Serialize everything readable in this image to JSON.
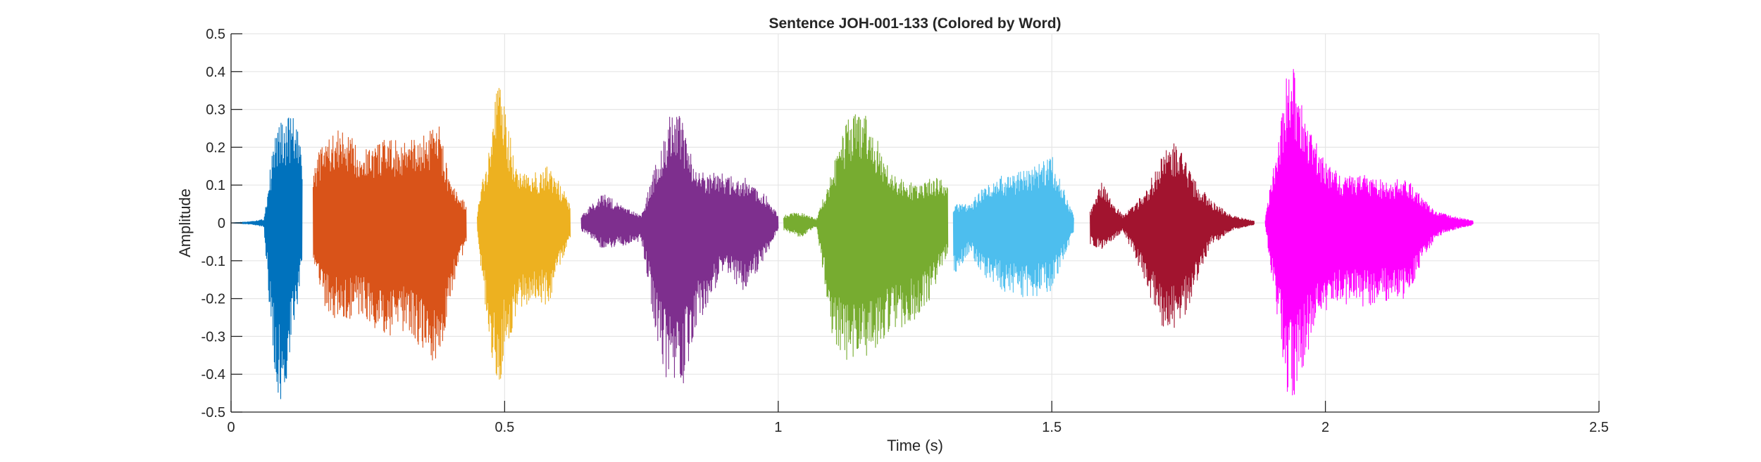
{
  "chart_data": {
    "type": "line",
    "title": "Sentence JOH-001-133 (Colored by Word)",
    "xlabel": "Time (s)",
    "ylabel": "Amplitude",
    "xlim": [
      0,
      2.5
    ],
    "ylim": [
      -0.5,
      0.5
    ],
    "xticks": [
      0,
      0.5,
      1,
      1.5,
      2,
      2.5
    ],
    "xtick_labels": [
      "0",
      "0.5",
      "1",
      "1.5",
      "2",
      "2.5"
    ],
    "yticks": [
      -0.5,
      -0.4,
      -0.3,
      -0.2,
      -0.1,
      0,
      0.1,
      0.2,
      0.3,
      0.4,
      0.5
    ],
    "ytick_labels": [
      "-0.5",
      "-0.4",
      "-0.3",
      "-0.2",
      "-0.1",
      "0",
      "0.1",
      "0.2",
      "0.3",
      "0.4",
      "0.5"
    ],
    "grid": true,
    "series": [
      {
        "color": "#0072BD",
        "x": [
          0.0,
          0.03,
          0.06,
          0.08,
          0.09,
          0.1,
          0.11,
          0.12,
          0.13
        ],
        "upper": [
          0.0,
          0.003,
          0.01,
          0.24,
          0.27,
          0.27,
          0.29,
          0.26,
          0.17
        ],
        "lower": [
          0.0,
          -0.003,
          -0.01,
          -0.42,
          -0.49,
          -0.47,
          -0.33,
          -0.24,
          -0.12
        ]
      },
      {
        "color": "#D95319",
        "x": [
          0.15,
          0.17,
          0.2,
          0.24,
          0.28,
          0.32,
          0.35,
          0.38,
          0.4,
          0.43
        ],
        "upper": [
          0.15,
          0.22,
          0.25,
          0.2,
          0.22,
          0.22,
          0.23,
          0.26,
          0.11,
          0.05
        ],
        "lower": [
          -0.1,
          -0.22,
          -0.27,
          -0.24,
          -0.32,
          -0.28,
          -0.34,
          -0.41,
          -0.2,
          -0.05
        ]
      },
      {
        "color": "#EDB120",
        "x": [
          0.45,
          0.47,
          0.49,
          0.5,
          0.52,
          0.55,
          0.58,
          0.6,
          0.62
        ],
        "upper": [
          0.03,
          0.2,
          0.41,
          0.3,
          0.16,
          0.13,
          0.15,
          0.11,
          0.05
        ],
        "lower": [
          -0.03,
          -0.3,
          -0.46,
          -0.34,
          -0.27,
          -0.2,
          -0.22,
          -0.12,
          -0.04
        ]
      },
      {
        "color": "#7E2F8E",
        "x": [
          0.64,
          0.68,
          0.72,
          0.75,
          0.78,
          0.8,
          0.82,
          0.85,
          0.9,
          0.94,
          0.98,
          1.0
        ],
        "upper": [
          0.02,
          0.08,
          0.04,
          0.02,
          0.18,
          0.28,
          0.29,
          0.14,
          0.13,
          0.12,
          0.07,
          0.02
        ],
        "lower": [
          -0.02,
          -0.07,
          -0.06,
          -0.05,
          -0.32,
          -0.44,
          -0.47,
          -0.28,
          -0.13,
          -0.19,
          -0.08,
          -0.02
        ]
      },
      {
        "color": "#77AC30",
        "x": [
          1.01,
          1.04,
          1.07,
          1.1,
          1.13,
          1.16,
          1.2,
          1.25,
          1.28,
          1.31
        ],
        "upper": [
          0.02,
          0.03,
          0.01,
          0.15,
          0.29,
          0.3,
          0.15,
          0.1,
          0.12,
          0.12
        ],
        "lower": [
          -0.02,
          -0.04,
          -0.01,
          -0.32,
          -0.37,
          -0.36,
          -0.3,
          -0.26,
          -0.2,
          -0.08
        ]
      },
      {
        "color": "#4DBEEE",
        "x": [
          1.32,
          1.35,
          1.38,
          1.42,
          1.46,
          1.5,
          1.54
        ],
        "upper": [
          0.05,
          0.05,
          0.11,
          0.13,
          0.14,
          0.18,
          0.02
        ],
        "lower": [
          -0.14,
          -0.08,
          -0.15,
          -0.19,
          -0.2,
          -0.18,
          -0.03
        ]
      },
      {
        "color": "#A2142F",
        "x": [
          1.57,
          1.59,
          1.61,
          1.63,
          1.67,
          1.7,
          1.73,
          1.76,
          1.79,
          1.83,
          1.87
        ],
        "upper": [
          0.03,
          0.11,
          0.06,
          0.02,
          0.08,
          0.18,
          0.22,
          0.12,
          0.06,
          0.02,
          0.005
        ],
        "lower": [
          -0.06,
          -0.07,
          -0.05,
          -0.02,
          -0.16,
          -0.29,
          -0.29,
          -0.2,
          -0.06,
          -0.02,
          -0.005
        ]
      },
      {
        "color": "#FF00FF",
        "x": [
          1.89,
          1.93,
          1.94,
          1.96,
          1.99,
          2.03,
          2.07,
          2.11,
          2.15,
          2.2,
          2.23,
          2.27
        ],
        "upper": [
          0.01,
          0.4,
          0.42,
          0.29,
          0.19,
          0.12,
          0.13,
          0.11,
          0.12,
          0.03,
          0.02,
          0.005
        ],
        "lower": [
          -0.01,
          -0.45,
          -0.47,
          -0.38,
          -0.24,
          -0.22,
          -0.22,
          -0.21,
          -0.2,
          -0.04,
          -0.02,
          -0.005
        ]
      }
    ]
  }
}
